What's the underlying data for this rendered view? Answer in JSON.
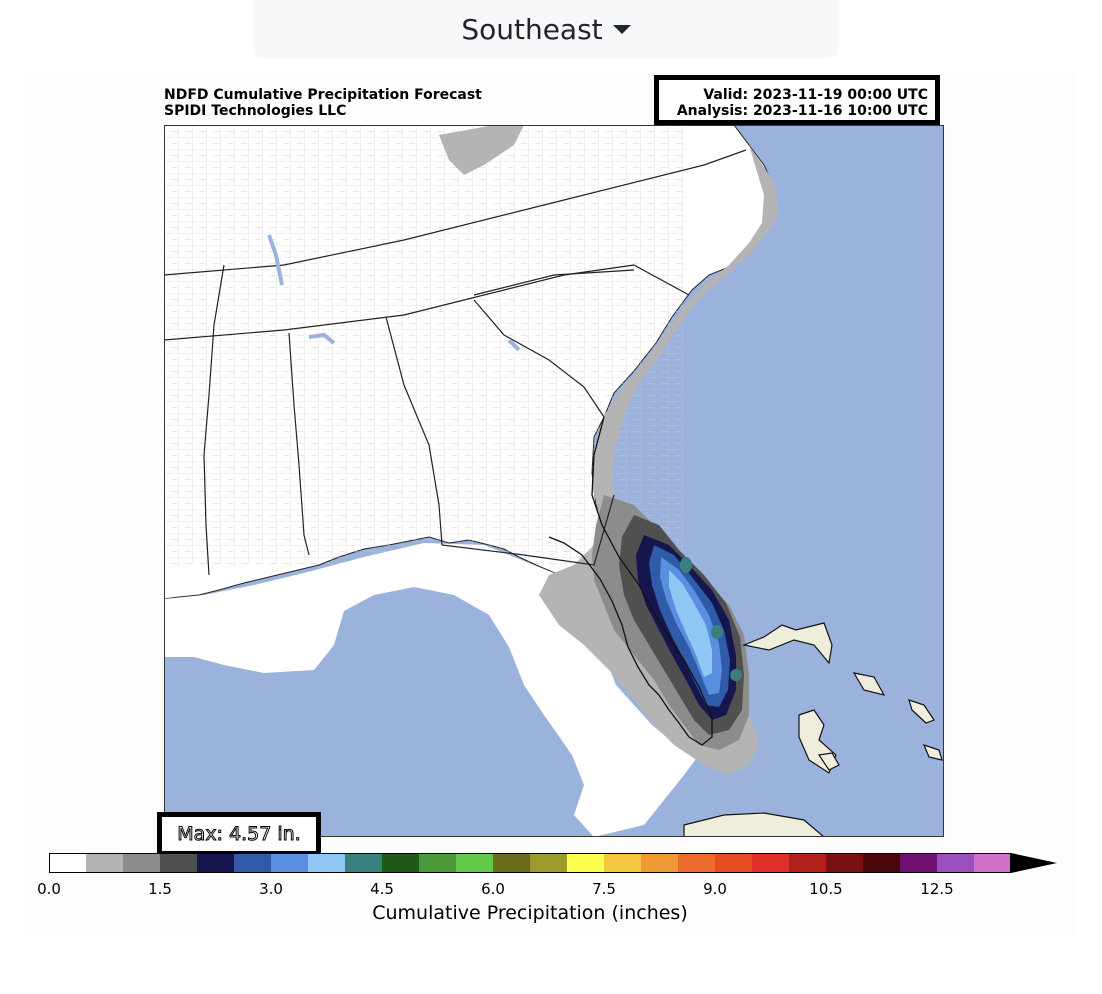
{
  "region_selector": {
    "label": "Southeast"
  },
  "header": {
    "title": "NDFD Cumulative Precipitation Forecast",
    "org": "SPIDI Technologies LLC",
    "valid": "Valid: 2023-11-19 00:00 UTC",
    "analysis": "Analysis: 2023-11-16 10:00 UTC"
  },
  "max_label": "Max: 4.57 in.",
  "colorbar": {
    "title": "Cumulative Precipitation (inches)",
    "ticks": [
      "0.0",
      "1.5",
      "3.0",
      "4.5",
      "6.0",
      "7.5",
      "9.0",
      "10.5",
      "12.5"
    ],
    "colors": [
      "#ffffff",
      "#b4b4b4",
      "#8c8c8c",
      "#505050",
      "#16164f",
      "#2f5ba8",
      "#5a8ee0",
      "#8ec6f4",
      "#3a7f7f",
      "#1f5b16",
      "#4b9b3c",
      "#62c94b",
      "#6b6b1c",
      "#9b9b2d",
      "#ffff4f",
      "#f5c842",
      "#f09a35",
      "#ec6a2a",
      "#e84d22",
      "#e0302a",
      "#b0201a",
      "#7a1010",
      "#4a0808",
      "#701070",
      "#9c4fc0",
      "#d070c8"
    ],
    "extend": "max"
  },
  "map": {
    "ocean_color": "#9bb3dc",
    "land_color": "#ffffff",
    "foreign_land_color": "#efeedd"
  }
}
